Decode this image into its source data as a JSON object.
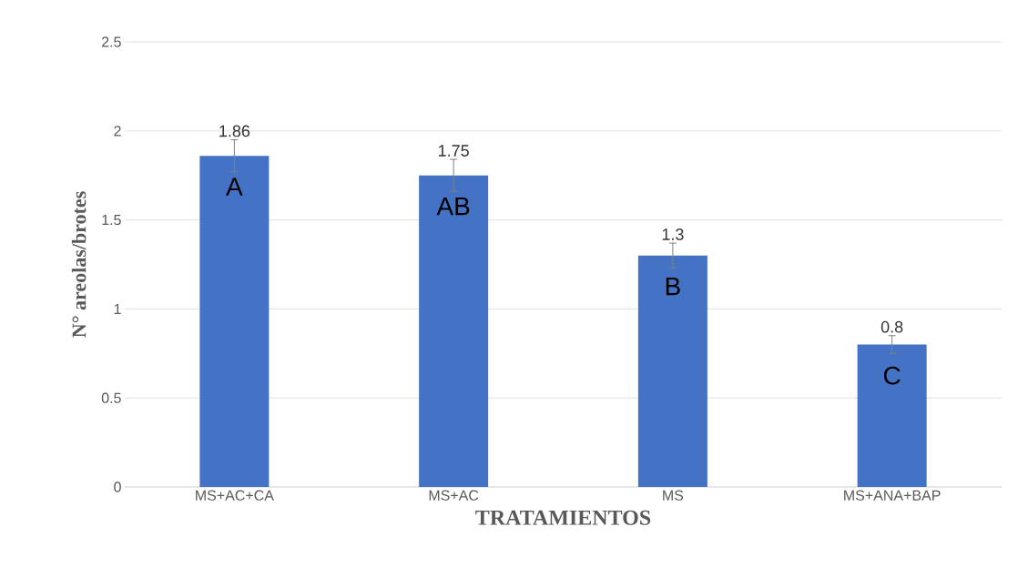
{
  "chart_data": {
    "type": "bar",
    "xlabel": "TRATAMIENTOS",
    "ylabel": "N° areolas/brotes",
    "categories": [
      "MS+AC+CA",
      "MS+AC",
      "MS",
      "MS+ANA+BAP"
    ],
    "values": [
      1.86,
      1.75,
      1.3,
      0.8
    ],
    "errors": [
      0.09,
      0.09,
      0.07,
      0.05
    ],
    "value_labels": [
      "1.86",
      "1.75",
      "1.3",
      "0.8"
    ],
    "color": "#4472c4",
    "ylim": [
      0,
      2.5
    ],
    "yticks": [
      0,
      0.5,
      1,
      1.5,
      2,
      2.5
    ],
    "grid": "y",
    "annotations": [
      "A",
      "AB",
      "B",
      "C"
    ]
  }
}
